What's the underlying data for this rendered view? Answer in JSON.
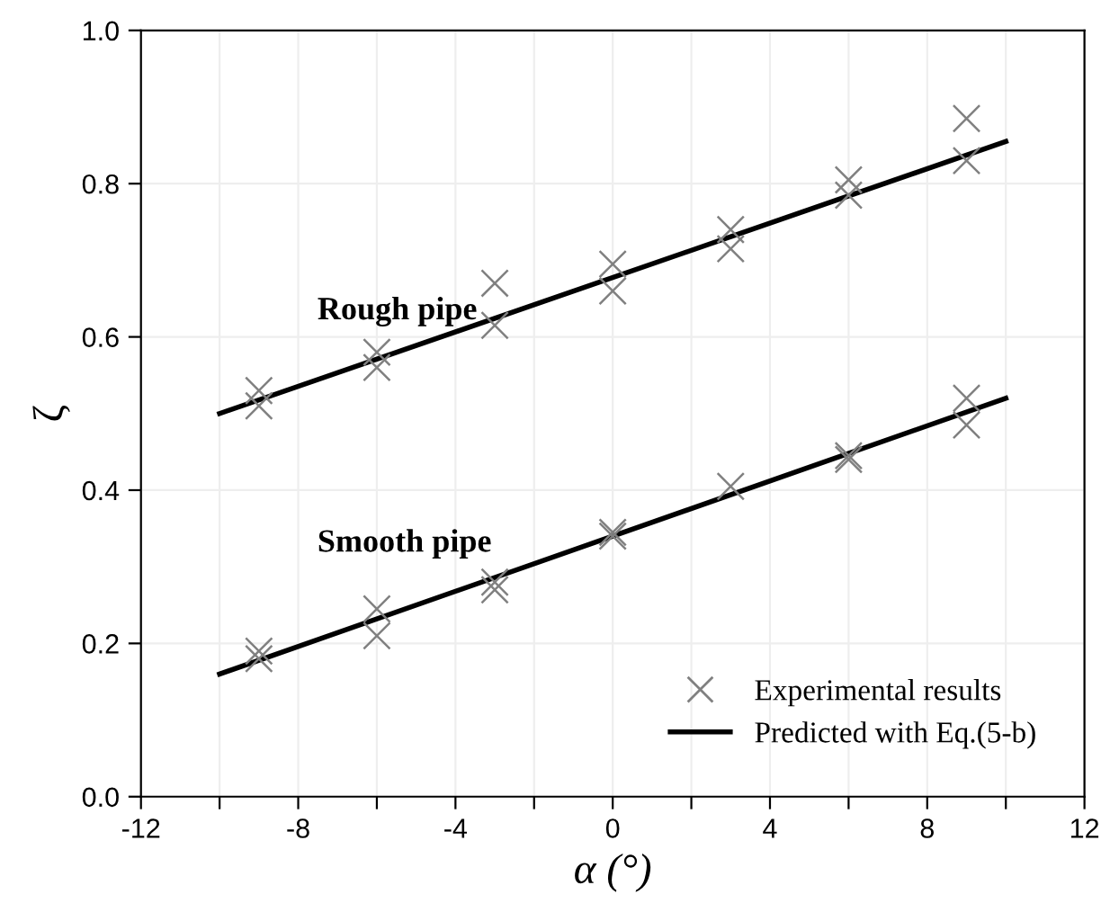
{
  "chart_data": {
    "type": "scatter",
    "xlabel": "α (°)",
    "ylabel": "ζ",
    "xlim": [
      -12,
      12
    ],
    "xticks": [
      -12,
      {
        "value": -10,
        "label": null
      },
      -8,
      {
        "value": -6,
        "label": null
      },
      -4,
      {
        "value": -2,
        "label": null
      },
      0,
      {
        "value": 2,
        "label": null
      },
      4,
      {
        "value": 6,
        "label": null
      },
      8,
      {
        "value": 10,
        "label": null
      },
      12
    ],
    "ylim": [
      0,
      1
    ],
    "yticks": [
      {
        "value": 0,
        "label": "0.0"
      },
      0.2,
      0.4,
      0.6,
      0.8,
      {
        "value": 1,
        "label": "1.0"
      }
    ],
    "grid": true,
    "legend": "bottom right",
    "series": [
      {
        "name": "Experimental results",
        "marker": "cross",
        "color": "#808080",
        "x": [
          -9,
          -9,
          -6,
          -6,
          -3,
          -3,
          0,
          0,
          3,
          3,
          6,
          6,
          9,
          9
        ],
        "values": [
          0.53,
          0.51,
          0.58,
          0.56,
          0.67,
          0.615,
          0.695,
          0.66,
          0.74,
          0.715,
          0.805,
          0.785,
          0.885,
          0.83
        ]
      },
      {
        "marker": "cross",
        "color": "#808080",
        "x": [
          -9,
          -9,
          -6,
          -6,
          -3,
          -3,
          0,
          0,
          3,
          6,
          6,
          9,
          9
        ],
        "values": [
          0.19,
          0.18,
          0.245,
          0.21,
          0.28,
          0.27,
          0.345,
          0.34,
          0.405,
          0.445,
          0.44,
          0.52,
          0.485
        ]
      },
      {
        "name": "Predicted with Eq.(5-b)",
        "type": "line",
        "marker": "none",
        "color": "#000000",
        "x": [
          -10,
          10
        ],
        "values": [
          0.5,
          0.855
        ]
      },
      {
        "type": "line",
        "marker": "none",
        "color": "#000000",
        "x": [
          -10,
          10
        ],
        "values": [
          0.16,
          0.52
        ]
      }
    ],
    "annotations": [
      "Rough pipe",
      "Smooth pipe"
    ]
  }
}
